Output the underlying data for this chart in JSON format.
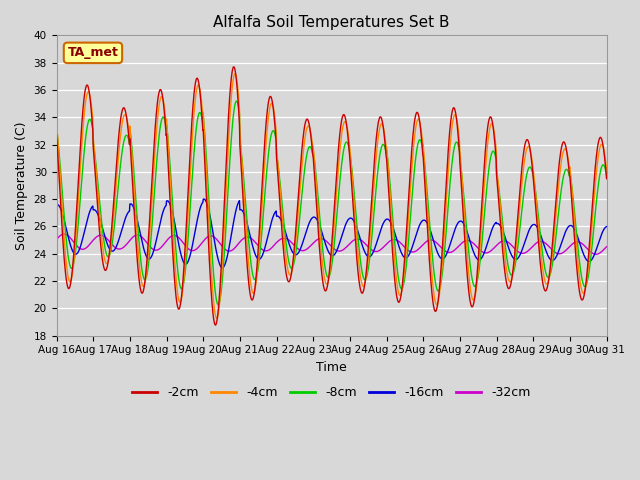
{
  "title": "Alfalfa Soil Temperatures Set B",
  "xlabel": "Time",
  "ylabel": "Soil Temperature (C)",
  "ylim": [
    18,
    40
  ],
  "x_tick_labels": [
    "Aug 16",
    "Aug 17",
    "Aug 18",
    "Aug 19",
    "Aug 20",
    "Aug 21",
    "Aug 22",
    "Aug 23",
    "Aug 24",
    "Aug 25",
    "Aug 26",
    "Aug 27",
    "Aug 28",
    "Aug 29",
    "Aug 30",
    "Aug 31"
  ],
  "background_color": "#d8d8d8",
  "plot_bg_color": "#d8d8d8",
  "annotation_text": "TA_met",
  "annotation_box_color": "#ffff99",
  "annotation_border_color": "#cc6600",
  "annotation_text_color": "#880000",
  "line_colors": [
    "#cc0000",
    "#ff8800",
    "#00cc00",
    "#0000dd",
    "#cc00cc"
  ],
  "line_labels": [
    "-2cm",
    "-4cm",
    "-8cm",
    "-16cm",
    "-32cm"
  ],
  "title_fontsize": 11,
  "axis_label_fontsize": 9,
  "tick_fontsize": 7.5,
  "legend_fontsize": 9
}
